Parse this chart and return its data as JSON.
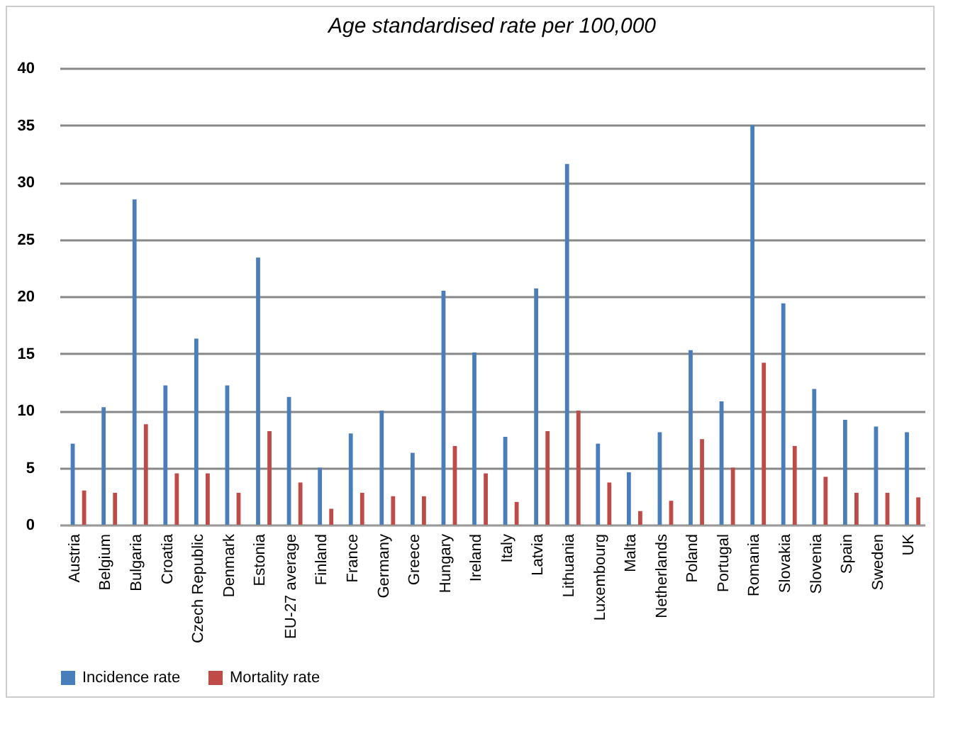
{
  "chart_data": {
    "type": "bar",
    "title": "Age standardised rate per 100,000",
    "categories": [
      "Austria",
      "Belgium",
      "Bulgaria",
      "Croatia",
      "Czech Republic",
      "Denmark",
      "Estonia",
      "EU-27 average",
      "Finland",
      "France",
      "Germany",
      "Greece",
      "Hungary",
      "Ireland",
      "Italy",
      "Latvia",
      "Lithuania",
      "Luxembourg",
      "Malta",
      "Netherlands",
      "Poland",
      "Portugal",
      "Romania",
      "Slovakia",
      "Slovenia",
      "Spain",
      "Sweden",
      "UK"
    ],
    "series": [
      {
        "name": "Incidence rate",
        "color": "#4a7ebb",
        "values": [
          7.1,
          10.3,
          28.5,
          12.2,
          16.3,
          12.2,
          23.4,
          11.2,
          5.0,
          8.0,
          10.0,
          6.3,
          20.5,
          15.1,
          7.7,
          20.7,
          31.6,
          7.1,
          4.6,
          8.1,
          15.3,
          10.8,
          35.0,
          19.4,
          11.9,
          9.2,
          8.6,
          8.1
        ]
      },
      {
        "name": "Mortality rate",
        "color": "#be4b48",
        "values": [
          3.0,
          2.8,
          8.8,
          4.5,
          4.5,
          2.8,
          8.2,
          3.7,
          1.4,
          2.8,
          2.5,
          2.5,
          6.9,
          4.5,
          2.0,
          8.2,
          10.0,
          3.7,
          1.2,
          2.1,
          7.5,
          5.0,
          14.2,
          6.9,
          4.2,
          2.8,
          2.8,
          2.4
        ]
      }
    ],
    "ylim": [
      0,
      40
    ],
    "yticks": [
      0,
      5,
      10,
      15,
      20,
      25,
      30,
      35,
      40
    ],
    "grid": "y",
    "legend": "bottom"
  }
}
